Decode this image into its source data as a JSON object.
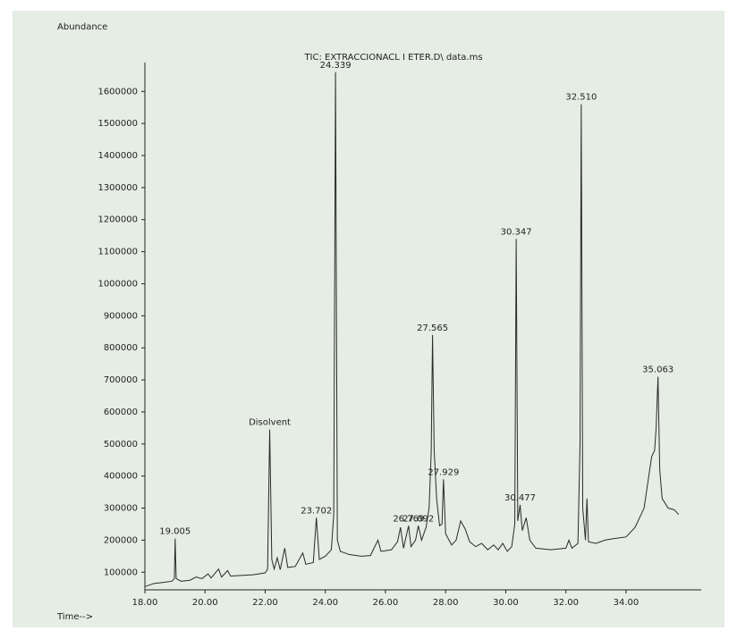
{
  "chart_data": {
    "type": "line",
    "title": "TIC: EXTRACCIONACL I ETER.D\\ data.ms",
    "y_label": "Abundance",
    "x_label": "Time-->",
    "color": "#2a2a2a",
    "xlim": [
      18,
      36.5
    ],
    "ylim": [
      45000,
      1690000
    ],
    "xticks": [
      {
        "value": 18,
        "label": "18.00"
      },
      {
        "value": 20,
        "label": "20.00"
      },
      {
        "value": 22,
        "label": "22.00"
      },
      {
        "value": 24,
        "label": "24.00"
      },
      {
        "value": 26,
        "label": "26.00"
      },
      {
        "value": 28,
        "label": "28.00"
      },
      {
        "value": 30,
        "label": "30.00"
      },
      {
        "value": 32,
        "label": "32.00"
      },
      {
        "value": 34,
        "label": "34.00"
      }
    ],
    "yticks": [
      100000,
      200000,
      300000,
      400000,
      500000,
      600000,
      700000,
      800000,
      900000,
      1000000,
      1100000,
      1200000,
      1300000,
      1400000,
      1500000,
      1600000
    ],
    "x": [
      18.0,
      18.3,
      18.6,
      18.9,
      18.98,
      19.005,
      19.04,
      19.2,
      19.5,
      19.7,
      19.9,
      20.1,
      20.2,
      20.45,
      20.55,
      20.75,
      20.85,
      21.2,
      21.6,
      22.0,
      22.08,
      22.15,
      22.22,
      22.3,
      22.4,
      22.5,
      22.65,
      22.75,
      23.0,
      23.25,
      23.35,
      23.6,
      23.702,
      23.8,
      24.0,
      24.2,
      24.28,
      24.339,
      24.4,
      24.5,
      24.8,
      25.2,
      25.5,
      25.75,
      25.85,
      26.2,
      26.4,
      26.5,
      26.6,
      26.769,
      26.85,
      27.0,
      27.092,
      27.2,
      27.35,
      27.45,
      27.52,
      27.565,
      27.62,
      27.7,
      27.8,
      27.88,
      27.929,
      28.0,
      28.2,
      28.35,
      28.5,
      28.65,
      28.8,
      29.0,
      29.2,
      29.4,
      29.6,
      29.75,
      29.9,
      30.05,
      30.2,
      30.3,
      30.347,
      30.4,
      30.477,
      30.55,
      30.68,
      30.8,
      31.0,
      31.5,
      32.0,
      32.1,
      32.2,
      32.4,
      32.47,
      32.51,
      32.56,
      32.65,
      32.7,
      32.75,
      33.0,
      33.3,
      33.6,
      34.0,
      34.3,
      34.6,
      34.85,
      34.95,
      35.0,
      35.063,
      35.12,
      35.2,
      35.4,
      35.6,
      35.75
    ],
    "values": [
      55000,
      65000,
      68000,
      72000,
      80000,
      205000,
      80000,
      72000,
      75000,
      85000,
      80000,
      95000,
      82000,
      110000,
      85000,
      105000,
      88000,
      90000,
      92000,
      98000,
      110000,
      545000,
      140000,
      110000,
      145000,
      108000,
      175000,
      115000,
      118000,
      160000,
      125000,
      130000,
      270000,
      140000,
      150000,
      170000,
      280000,
      1660000,
      200000,
      165000,
      155000,
      150000,
      152000,
      200000,
      165000,
      170000,
      195000,
      240000,
      175000,
      245000,
      180000,
      200000,
      245000,
      200000,
      240000,
      300000,
      470000,
      840000,
      480000,
      330000,
      245000,
      250000,
      390000,
      220000,
      185000,
      200000,
      260000,
      235000,
      195000,
      180000,
      190000,
      170000,
      185000,
      170000,
      190000,
      165000,
      180000,
      250000,
      1140000,
      260000,
      310000,
      230000,
      270000,
      200000,
      175000,
      170000,
      175000,
      200000,
      175000,
      190000,
      500000,
      1560000,
      300000,
      200000,
      330000,
      195000,
      190000,
      200000,
      205000,
      210000,
      240000,
      300000,
      460000,
      480000,
      550000,
      710000,
      420000,
      330000,
      300000,
      295000,
      280000
    ],
    "annotations": [
      {
        "label": "19.005",
        "x": 19.005,
        "y": 205000
      },
      {
        "label": "Disolvent",
        "x": 22.15,
        "y": 545000
      },
      {
        "label": "23.702",
        "x": 23.702,
        "y": 270000
      },
      {
        "label": "24.339",
        "x": 24.339,
        "y": 1660000
      },
      {
        "label": "26.769",
        "x": 26.769,
        "y": 245000
      },
      {
        "label": "27.092",
        "x": 27.092,
        "y": 245000
      },
      {
        "label": "27.565",
        "x": 27.565,
        "y": 840000
      },
      {
        "label": "27.929",
        "x": 27.929,
        "y": 390000
      },
      {
        "label": "30.347",
        "x": 30.347,
        "y": 1140000
      },
      {
        "label": "30.477",
        "x": 30.477,
        "y": 310000
      },
      {
        "label": "32.510",
        "x": 32.51,
        "y": 1560000
      },
      {
        "label": "35.063",
        "x": 35.063,
        "y": 710000
      }
    ]
  }
}
